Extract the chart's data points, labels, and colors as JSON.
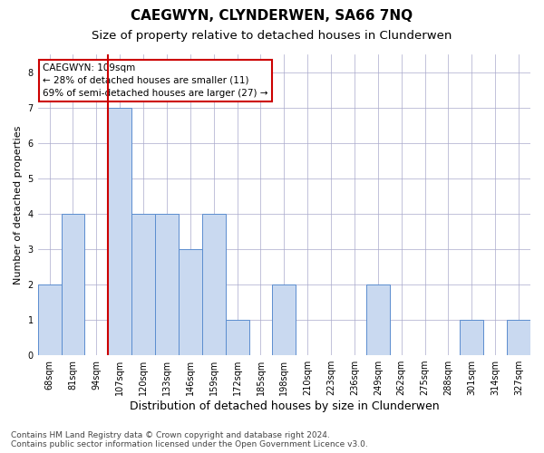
{
  "title": "CAEGWYN, CLYNDERWEN, SA66 7NQ",
  "subtitle": "Size of property relative to detached houses in Clunderwen",
  "xlabel": "Distribution of detached houses by size in Clunderwen",
  "ylabel": "Number of detached properties",
  "categories": [
    "68sqm",
    "81sqm",
    "94sqm",
    "107sqm",
    "120sqm",
    "133sqm",
    "146sqm",
    "159sqm",
    "172sqm",
    "185sqm",
    "198sqm",
    "210sqm",
    "223sqm",
    "236sqm",
    "249sqm",
    "262sqm",
    "275sqm",
    "288sqm",
    "301sqm",
    "314sqm",
    "327sqm"
  ],
  "values": [
    2,
    4,
    0,
    7,
    4,
    4,
    3,
    4,
    1,
    0,
    2,
    0,
    0,
    0,
    2,
    0,
    0,
    0,
    1,
    0,
    1
  ],
  "bar_color": "#c9d9f0",
  "bar_edge_color": "#5b8dcf",
  "vline_x": 3.0,
  "vline_color": "#cc0000",
  "annotation_text": "CAEGWYN: 109sqm\n← 28% of detached houses are smaller (11)\n69% of semi-detached houses are larger (27) →",
  "annotation_box_color": "white",
  "annotation_box_edge": "#cc0000",
  "ylim": [
    0,
    8.5
  ],
  "yticks": [
    0,
    1,
    2,
    3,
    4,
    5,
    6,
    7,
    8
  ],
  "grid_color": "#aaaacc",
  "background_color": "white",
  "footer_text": "Contains HM Land Registry data © Crown copyright and database right 2024.\nContains public sector information licensed under the Open Government Licence v3.0.",
  "title_fontsize": 11,
  "subtitle_fontsize": 9.5,
  "xlabel_fontsize": 9,
  "ylabel_fontsize": 8,
  "tick_fontsize": 7,
  "annotation_fontsize": 7.5,
  "footer_fontsize": 6.5
}
